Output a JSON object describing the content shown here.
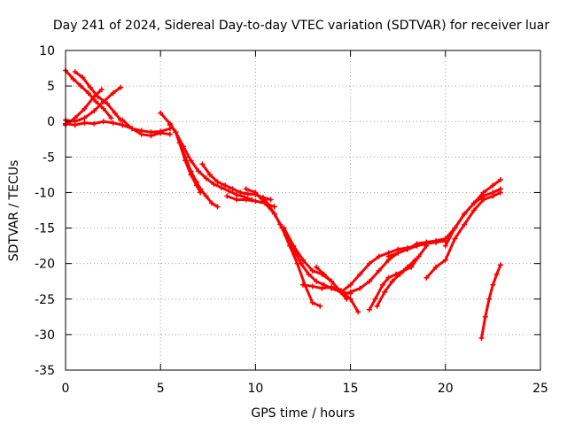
{
  "chart_data": {
    "type": "scatter",
    "title": "Day 241 of 2024, Sidereal Day-to-day VTEC variation (SDTVAR) for receiver luar",
    "xlabel": "GPS time / hours",
    "ylabel": "SDTVAR / TECUs",
    "xlim": [
      0,
      25
    ],
    "ylim": [
      -35,
      10
    ],
    "xticks": [
      0,
      5,
      10,
      15,
      20,
      25
    ],
    "yticks": [
      10,
      5,
      0,
      -5,
      -10,
      -15,
      -20,
      -25,
      -30,
      -35
    ],
    "grid": true,
    "marker": "+",
    "color": "#ff0000",
    "series": [
      {
        "name": "s1",
        "x": [
          0,
          0.4,
          0.8,
          1.2,
          1.6,
          2.0,
          2.4
        ],
        "y": [
          7.2,
          6.0,
          5.0,
          4.0,
          2.8,
          1.8,
          0.5
        ]
      },
      {
        "name": "s2",
        "x": [
          0.5,
          0.9,
          1.3,
          1.7,
          2.2,
          2.6,
          2.9
        ],
        "y": [
          7.0,
          6.2,
          4.8,
          3.5,
          2.5,
          1.2,
          0.2
        ]
      },
      {
        "name": "s3",
        "x": [
          0,
          0.5,
          1.0,
          1.5,
          2.0,
          2.5,
          2.9
        ],
        "y": [
          0.2,
          0.0,
          0.5,
          1.5,
          2.8,
          4.0,
          4.8
        ]
      },
      {
        "name": "s4",
        "x": [
          0,
          0.5,
          1.0,
          1.5,
          1.9
        ],
        "y": [
          -0.5,
          0.5,
          1.8,
          3.5,
          4.5
        ]
      },
      {
        "name": "s5",
        "x": [
          0,
          0.5,
          1.0,
          1.5,
          2.0,
          2.5,
          3.0,
          3.5,
          4.0,
          4.5,
          5.0,
          5.5
        ],
        "y": [
          -0.3,
          -0.5,
          -0.2,
          -0.3,
          0.0,
          -0.2,
          -0.5,
          -1.0,
          -1.3,
          -1.5,
          -1.4,
          -1.0
        ]
      },
      {
        "name": "s6",
        "x": [
          3.0,
          3.5,
          4.0,
          4.5,
          5.0,
          5.5
        ],
        "y": [
          0.2,
          -1.0,
          -1.8,
          -2.0,
          -1.6,
          -1.8
        ]
      },
      {
        "name": "s7",
        "x": [
          5.0,
          5.5,
          5.8,
          6.0,
          6.3,
          6.6,
          6.9,
          7.1,
          7.4,
          7.7,
          8.0
        ],
        "y": [
          1.2,
          -0.3,
          -1.5,
          -3.0,
          -5.0,
          -7.0,
          -8.5,
          -9.5,
          -10.5,
          -11.5,
          -12.0
        ]
      },
      {
        "name": "s8",
        "x": [
          5.5,
          5.8,
          6.0,
          6.3,
          6.6,
          6.9,
          7.1
        ],
        "y": [
          -0.5,
          -1.5,
          -3.0,
          -5.5,
          -7.5,
          -9.0,
          -10.0
        ]
      },
      {
        "name": "s9",
        "x": [
          5.8,
          6.2,
          6.6,
          7.0,
          7.4,
          7.8,
          8.2,
          8.6,
          9.0,
          9.4,
          9.8
        ],
        "y": [
          -1.5,
          -3.5,
          -5.5,
          -7.0,
          -8.0,
          -8.8,
          -9.3,
          -9.8,
          -10.3,
          -10.6,
          -11.0
        ]
      },
      {
        "name": "s10",
        "x": [
          7.2,
          7.6,
          8.0,
          8.4,
          8.8,
          9.2,
          9.6,
          10.0,
          10.4,
          10.8
        ],
        "y": [
          -6.0,
          -7.5,
          -8.5,
          -9.0,
          -9.5,
          -10.0,
          -10.2,
          -10.3,
          -10.7,
          -11.0
        ]
      },
      {
        "name": "s11",
        "x": [
          8.5,
          9.0,
          9.5,
          10.0,
          10.5,
          11.0
        ],
        "y": [
          -10.5,
          -11.0,
          -11.0,
          -11.2,
          -11.5,
          -12.0
        ]
      },
      {
        "name": "s12",
        "x": [
          9.5,
          10.0,
          10.5,
          11.0,
          11.3,
          11.6,
          12.0,
          12.4,
          12.8,
          13.2,
          13.6,
          14.0,
          14.5,
          15.0
        ],
        "y": [
          -9.5,
          -10.0,
          -11.5,
          -13.0,
          -14.5,
          -16.0,
          -18.0,
          -20.0,
          -21.5,
          -22.5,
          -23.0,
          -23.5,
          -24.0,
          -24.2
        ]
      },
      {
        "name": "s13",
        "x": [
          10.5,
          11.0,
          11.4,
          11.8,
          12.2,
          12.6,
          13.0,
          13.4
        ],
        "y": [
          -11.0,
          -13.0,
          -15.0,
          -17.5,
          -20.0,
          -23.0,
          -25.5,
          -26.0
        ]
      },
      {
        "name": "s14",
        "x": [
          11.5,
          12.0,
          12.5,
          13.0,
          13.5,
          14.0,
          14.5,
          15.0
        ],
        "y": [
          -15.0,
          -17.5,
          -19.5,
          -21.0,
          -21.5,
          -22.5,
          -24.0,
          -25.0
        ]
      },
      {
        "name": "s15",
        "x": [
          12.5,
          13.0,
          13.5,
          14.0,
          14.5,
          15.0,
          15.4
        ],
        "y": [
          -23.0,
          -23.2,
          -23.5,
          -23.3,
          -23.8,
          -25.0,
          -26.8
        ]
      },
      {
        "name": "s16",
        "x": [
          13.2,
          13.6,
          14.0,
          14.4,
          14.8
        ],
        "y": [
          -20.5,
          -21.5,
          -22.5,
          -23.8,
          -25.0
        ]
      },
      {
        "name": "s17",
        "x": [
          14.5,
          15.0,
          15.5,
          16.0,
          16.5,
          17.0,
          17.5,
          18.0,
          18.5,
          19.0,
          19.5,
          20.0
        ],
        "y": [
          -24.0,
          -23.0,
          -21.5,
          -20.0,
          -19.0,
          -18.5,
          -18.0,
          -17.8,
          -17.5,
          -17.0,
          -17.0,
          -16.8
        ]
      },
      {
        "name": "s18",
        "x": [
          15.0,
          15.5,
          16.0,
          16.5,
          17.0,
          17.5,
          18.0,
          18.5,
          19.0,
          19.5,
          20.0
        ],
        "y": [
          -24.0,
          -23.5,
          -22.5,
          -21.0,
          -19.5,
          -18.5,
          -18.0,
          -17.2,
          -17.0,
          -16.8,
          -16.5
        ]
      },
      {
        "name": "s19",
        "x": [
          16.0,
          16.3,
          16.7,
          17.0,
          17.4,
          17.8,
          18.2,
          18.6,
          19.0
        ],
        "y": [
          -26.5,
          -25.0,
          -23.0,
          -22.0,
          -21.5,
          -21.0,
          -20.5,
          -19.0,
          -17.5
        ]
      },
      {
        "name": "s20",
        "x": [
          16.4,
          16.8,
          17.2,
          17.6,
          18.0,
          18.4
        ],
        "y": [
          -26.0,
          -24.0,
          -22.5,
          -21.5,
          -20.5,
          -19.5
        ]
      },
      {
        "name": "s21",
        "x": [
          17.0,
          17.5,
          18.0,
          18.5,
          19.0,
          19.5,
          20.0,
          20.5,
          21.0,
          21.5,
          22.0,
          22.5,
          22.9
        ],
        "y": [
          -19.0,
          -18.5,
          -18.0,
          -17.5,
          -17.2,
          -17.0,
          -16.5,
          -15.0,
          -13.0,
          -11.5,
          -10.0,
          -9.0,
          -8.2
        ]
      },
      {
        "name": "s22",
        "x": [
          19.0,
          19.5,
          20.0,
          20.5,
          21.0,
          21.5,
          22.0,
          22.5,
          22.9
        ],
        "y": [
          -22.0,
          -20.5,
          -19.5,
          -16.5,
          -14.5,
          -12.5,
          -11.0,
          -10.5,
          -10.0
        ]
      },
      {
        "name": "s23",
        "x": [
          20.0,
          20.5,
          21.0,
          21.5,
          22.0,
          22.5,
          22.9
        ],
        "y": [
          -17.5,
          -15.0,
          -13.0,
          -11.5,
          -10.5,
          -10.0,
          -9.5
        ]
      },
      {
        "name": "s24",
        "x": [
          21.9,
          22.1,
          22.3,
          22.5,
          22.7,
          22.9
        ],
        "y": [
          -30.5,
          -27.5,
          -25.0,
          -23.0,
          -21.5,
          -20.2
        ]
      }
    ]
  }
}
